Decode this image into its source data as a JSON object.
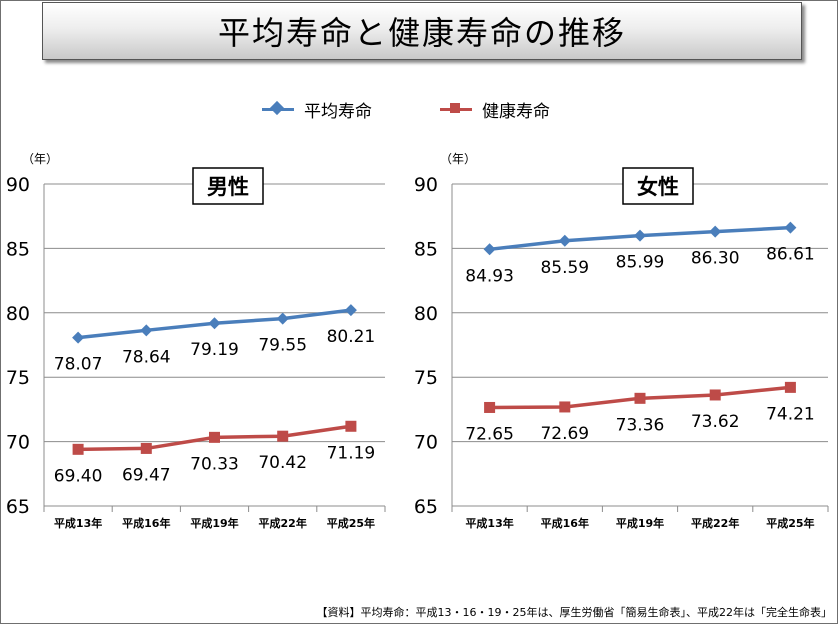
{
  "title": "平均寿命と健康寿命の推移",
  "legend": [
    {
      "label": "平均寿命",
      "color": "#4a7ebb",
      "marker": "diamond"
    },
    {
      "label": "健康寿命",
      "color": "#be4b48",
      "marker": "square"
    }
  ],
  "footer": "【資料】平均寿命：平成13・16・19・25年は、厚生労働省「簡易生命表」、平成22年は「完全生命表」",
  "chart_data": [
    {
      "type": "line",
      "title": "男性",
      "unit_label": "（年）",
      "categories": [
        "平成13年",
        "平成16年",
        "平成19年",
        "平成22年",
        "平成25年"
      ],
      "series": [
        {
          "name": "平均寿命",
          "color": "#4a7ebb",
          "values": [
            78.07,
            78.64,
            79.19,
            79.55,
            80.21
          ]
        },
        {
          "name": "健康寿命",
          "color": "#be4b48",
          "values": [
            69.4,
            69.47,
            70.33,
            70.42,
            71.19
          ]
        }
      ],
      "ylim": [
        65,
        90
      ],
      "yticks": [
        65,
        70,
        75,
        80,
        85,
        90
      ],
      "grid": true
    },
    {
      "type": "line",
      "title": "女性",
      "unit_label": "（年）",
      "categories": [
        "平成13年",
        "平成16年",
        "平成19年",
        "平成22年",
        "平成25年"
      ],
      "series": [
        {
          "name": "平均寿命",
          "color": "#4a7ebb",
          "values": [
            84.93,
            85.59,
            85.99,
            86.3,
            86.61
          ]
        },
        {
          "name": "健康寿命",
          "color": "#be4b48",
          "values": [
            72.65,
            72.69,
            73.36,
            73.62,
            74.21
          ]
        }
      ],
      "ylim": [
        65,
        90
      ],
      "yticks": [
        65,
        70,
        75,
        80,
        85,
        90
      ],
      "grid": true
    }
  ]
}
